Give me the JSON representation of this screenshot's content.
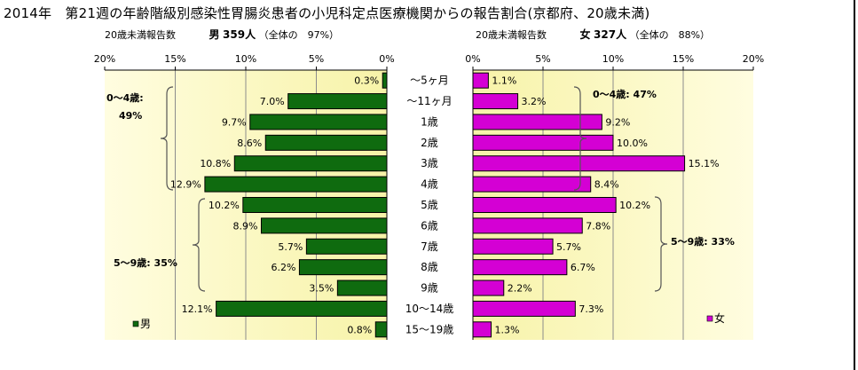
{
  "title": "2014年　第21週の年齢階級別感染性胃腸炎患者の小児科定点医療機関からの報告割合(京都府、20歳未満)",
  "male_header": {
    "count_label": "20歳未満報告数",
    "sex": "男",
    "count": "359人",
    "total_note": "（全体の　97%）"
  },
  "female_header": {
    "count_label": "20歳未満報告数",
    "sex": "女",
    "count": "327人",
    "total_note": "（全体の　88%）"
  },
  "colors": {
    "male": "#0f6b0f",
    "female": "#d400d4",
    "plot_gradient_light": "#fffde0",
    "plot_gradient_mid": "#f7f3a8"
  },
  "chart_data": [
    {
      "type": "bar",
      "orientation": "horizontal-reversed",
      "categories": [
        "～5ヶ月",
        "～11ヶ月",
        "1歳",
        "2歳",
        "3歳",
        "4歳",
        "5歳",
        "6歳",
        "7歳",
        "8歳",
        "9歳",
        "10～14歳",
        "15～19歳"
      ],
      "series": [
        {
          "name": "男",
          "values": [
            0.3,
            7.0,
            9.7,
            8.6,
            10.8,
            12.9,
            10.2,
            8.9,
            5.7,
            6.2,
            3.5,
            12.1,
            0.8
          ],
          "labels": [
            "0.3%",
            "7.0%",
            "9.7%",
            "8.6%",
            "10.8%",
            "12.9%",
            "10.2%",
            "8.9%",
            "5.7%",
            "6.2%",
            "3.5%",
            "12.1%",
            "0.8%"
          ]
        }
      ],
      "xlim": [
        0,
        20
      ],
      "ticks": [
        "20%",
        "15%",
        "10%",
        "5%",
        "0%"
      ],
      "grid": true,
      "legend": "bottom-left",
      "group_labels": [
        {
          "text": "0～4歳:",
          "pct": "49%"
        },
        {
          "text": "5～9歳: 35%"
        }
      ]
    },
    {
      "type": "bar",
      "orientation": "horizontal",
      "categories": [
        "～5ヶ月",
        "～11ヶ月",
        "1歳",
        "2歳",
        "3歳",
        "4歳",
        "5歳",
        "6歳",
        "7歳",
        "8歳",
        "9歳",
        "10～14歳",
        "15～19歳"
      ],
      "series": [
        {
          "name": "女",
          "values": [
            1.1,
            3.2,
            9.2,
            10.0,
            15.1,
            8.4,
            10.2,
            7.8,
            5.7,
            6.7,
            2.2,
            7.3,
            1.3
          ],
          "labels": [
            "1.1%",
            "3.2%",
            "9.2%",
            "10.0%",
            "15.1%",
            "8.4%",
            "10.2%",
            "7.8%",
            "5.7%",
            "6.7%",
            "2.2%",
            "7.3%",
            "1.3%"
          ]
        }
      ],
      "xlim": [
        0,
        20
      ],
      "ticks": [
        "0%",
        "5%",
        "10%",
        "15%",
        "20%"
      ],
      "grid": true,
      "legend": "bottom-left",
      "group_labels": [
        {
          "text": "0～4歳: 47%"
        },
        {
          "text": "5～9歳: 33%"
        }
      ]
    }
  ]
}
